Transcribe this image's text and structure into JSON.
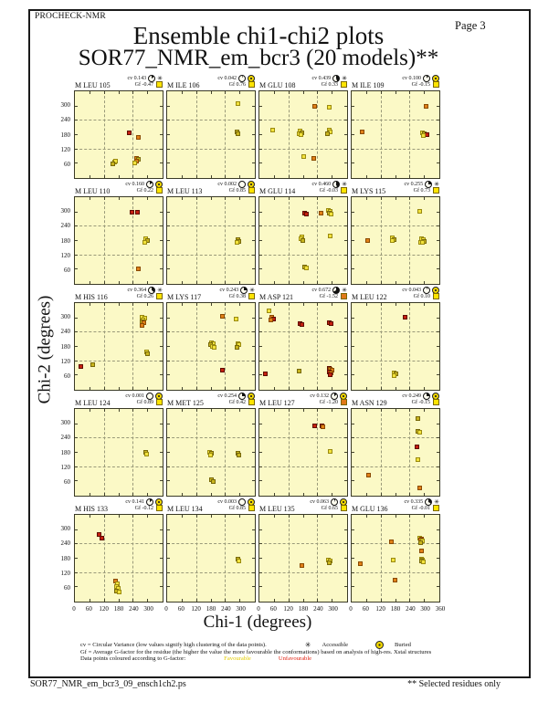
{
  "page": {
    "app_name": "PROCHECK-NMR",
    "page_label": "Page  3",
    "title": "Ensemble chi1-chi2 plots",
    "subtitle": "SOR77_NMR_em_bcr3 (20 models)**",
    "footer_left": "SOR77_NMR_em_bcr3_09_ensch1ch2.ps",
    "footer_right": "** Selected residues only"
  },
  "axes": {
    "xlabel": "Chi-1 (degrees)",
    "ylabel": "Chi-2 (degrees)",
    "cv_prefix": "cv",
    "gf_prefix": "Gf"
  },
  "legend": {
    "cv_line": "cv = Circular Variance (low values signify high clustering of the data points).",
    "accessible_label": "Accessible",
    "buried_label": "Buried",
    "gf_line": "Gf = Average G-factor for the residue (the higher the value the more favourable the conformations)  based on analysis of high-res. Xstal structures",
    "colour_line": "Data points coloured according to G-factor:",
    "favourable_label": "Favourable",
    "unfavourable_label": "Unfavourable"
  },
  "colors": {
    "plot_bg": "#fbf9c6",
    "favourable": "#f2e23c",
    "favourable_border": "#9a8a10",
    "olive": "#c8b41e",
    "olive_border": "#77680a",
    "orange": "#e08018",
    "orange_border": "#8a4a00",
    "unfavourable": "#c62010",
    "unfavourable_border": "#5e0c00",
    "gf_fav_swatch": "#ffe400",
    "gf_unfav_swatch": "#e07818"
  },
  "chart_data": {
    "type": "scatter",
    "grid": {
      "rows": 5,
      "cols": 4
    },
    "xlim": [
      0,
      360
    ],
    "ylim": [
      0,
      360
    ],
    "x_ticks": [
      0,
      60,
      120,
      180,
      240,
      300
    ],
    "x_end_tick": 360,
    "y_ticks": [
      300,
      240,
      180,
      120,
      60
    ],
    "dashed_grid_at": [
      120,
      240
    ],
    "point_colour_codes": {
      "f": "favourable",
      "d": "olive",
      "o": "orange",
      "u": "unfavourable"
    },
    "plots": [
      {
        "residue": "M LEU 105",
        "cv": "0.143",
        "gf": "-0.47",
        "exposure": "accessible",
        "gf_flag": "favourable",
        "points": [
          [
            225,
            185,
            "u"
          ],
          [
            263,
            165,
            "o"
          ],
          [
            163,
            62,
            "f"
          ],
          [
            170,
            67,
            "f"
          ],
          [
            158,
            56,
            "d"
          ],
          [
            255,
            80,
            "o"
          ],
          [
            262,
            74,
            "d"
          ],
          [
            257,
            67,
            "o"
          ],
          [
            250,
            60,
            "f"
          ]
        ]
      },
      {
        "residue": "M ILE 106",
        "cv": "0.042",
        "gf": "0.76",
        "exposure": "buried",
        "gf_flag": "favourable",
        "points": [
          [
            295,
            310,
            "f"
          ],
          [
            288,
            188,
            "d"
          ],
          [
            294,
            181,
            "d"
          ]
        ]
      },
      {
        "residue": "M GLU 108",
        "cv": "0.439",
        "gf": "0.33",
        "exposure": "accessible",
        "gf_flag": "favourable",
        "points": [
          [
            228,
            297,
            "o"
          ],
          [
            288,
            294,
            "f"
          ],
          [
            55,
            197,
            "f"
          ],
          [
            170,
            192,
            "f"
          ],
          [
            177,
            185,
            "d"
          ],
          [
            166,
            183,
            "f"
          ],
          [
            173,
            178,
            "f"
          ],
          [
            288,
            197,
            "f"
          ],
          [
            294,
            189,
            "f"
          ],
          [
            284,
            181,
            "d"
          ],
          [
            183,
            85,
            "f"
          ],
          [
            226,
            77,
            "o"
          ]
        ]
      },
      {
        "residue": "M ILE 109",
        "cv": "0.100",
        "gf": "-0.15",
        "exposure": "buried",
        "gf_flag": "favourable",
        "points": [
          [
            307,
            297,
            "o"
          ],
          [
            45,
            191,
            "o"
          ],
          [
            295,
            184,
            "f"
          ],
          [
            303,
            181,
            "d"
          ],
          [
            311,
            178,
            "u"
          ],
          [
            299,
            174,
            "f"
          ]
        ]
      },
      {
        "residue": "M LEU 110",
        "cv": "0.160",
        "gf": "0.22",
        "exposure": "buried",
        "gf_flag": "favourable",
        "points": [
          [
            238,
            296,
            "u"
          ],
          [
            261,
            295,
            "u"
          ],
          [
            294,
            184,
            "f"
          ],
          [
            300,
            178,
            "d"
          ],
          [
            289,
            172,
            "f"
          ],
          [
            262,
            60,
            "o"
          ]
        ]
      },
      {
        "residue": "M LEU 113",
        "cv": "0.002",
        "gf": "0.85",
        "exposure": "buried",
        "gf_flag": "favourable",
        "points": [
          [
            292,
            181,
            "d"
          ],
          [
            297,
            176,
            "d"
          ],
          [
            290,
            171,
            "f"
          ]
        ]
      },
      {
        "residue": "M GLU 114",
        "cv": "0.460",
        "gf": "-0.03",
        "exposure": "accessible",
        "gf_flag": "favourable",
        "points": [
          [
            188,
            293,
            "u"
          ],
          [
            196,
            289,
            "u"
          ],
          [
            255,
            292,
            "o"
          ],
          [
            285,
            306,
            "f"
          ],
          [
            293,
            301,
            "f"
          ],
          [
            288,
            294,
            "d"
          ],
          [
            296,
            290,
            "f"
          ],
          [
            178,
            195,
            "f"
          ],
          [
            173,
            187,
            "f"
          ],
          [
            180,
            179,
            "d"
          ],
          [
            294,
            199,
            "f"
          ],
          [
            186,
            68,
            "d"
          ],
          [
            194,
            63,
            "f"
          ]
        ]
      },
      {
        "residue": "M LYS 115",
        "cv": "0.255",
        "gf": "0.73",
        "exposure": "accessible",
        "gf_flag": "favourable",
        "points": [
          [
            284,
            301,
            "f"
          ],
          [
            68,
            179,
            "o"
          ],
          [
            170,
            189,
            "f"
          ],
          [
            177,
            183,
            "d"
          ],
          [
            167,
            177,
            "f"
          ],
          [
            288,
            186,
            "f"
          ],
          [
            296,
            181,
            "f"
          ],
          [
            301,
            176,
            "d"
          ],
          [
            285,
            171,
            "f"
          ],
          [
            292,
            169,
            "f"
          ]
        ]
      },
      {
        "residue": "M HIS 116",
        "cv": "0.364",
        "gf": "0.26",
        "exposure": "accessible",
        "gf_flag": "favourable",
        "points": [
          [
            280,
            301,
            "f"
          ],
          [
            288,
            297,
            "f"
          ],
          [
            284,
            289,
            "f"
          ],
          [
            277,
            282,
            "d"
          ],
          [
            286,
            276,
            "o"
          ],
          [
            280,
            268,
            "o"
          ],
          [
            297,
            156,
            "f"
          ],
          [
            303,
            148,
            "d"
          ],
          [
            25,
            95,
            "u"
          ],
          [
            75,
            101,
            "d"
          ]
        ]
      },
      {
        "residue": "M LYS 117",
        "cv": "0.243",
        "gf": "0.38",
        "exposure": "accessible",
        "gf_flag": "favourable",
        "points": [
          [
            228,
            306,
            "o"
          ],
          [
            286,
            292,
            "f"
          ],
          [
            185,
            193,
            "f"
          ],
          [
            192,
            188,
            "f"
          ],
          [
            180,
            184,
            "d"
          ],
          [
            188,
            178,
            "f"
          ],
          [
            196,
            174,
            "f"
          ],
          [
            293,
            191,
            "f"
          ],
          [
            299,
            184,
            "f"
          ],
          [
            290,
            176,
            "d"
          ],
          [
            228,
            78,
            "u"
          ]
        ]
      },
      {
        "residue": "M ASP 121",
        "cv": "0.672",
        "gf": "-1.52",
        "exposure": "accessible",
        "gf_flag": "unfavourable",
        "points": [
          [
            40,
            326,
            "f"
          ],
          [
            52,
            301,
            "o"
          ],
          [
            58,
            293,
            "u"
          ],
          [
            48,
            288,
            "o"
          ],
          [
            168,
            275,
            "u"
          ],
          [
            175,
            270,
            "u"
          ],
          [
            290,
            278,
            "u"
          ],
          [
            297,
            274,
            "u"
          ],
          [
            25,
            65,
            "u"
          ],
          [
            165,
            75,
            "d"
          ],
          [
            288,
            86,
            "u"
          ],
          [
            295,
            82,
            "o"
          ],
          [
            301,
            78,
            "o"
          ],
          [
            290,
            72,
            "u"
          ],
          [
            297,
            67,
            "o"
          ],
          [
            292,
            61,
            "u"
          ]
        ]
      },
      {
        "residue": "M LEU 122",
        "cv": "0.043",
        "gf": "0.10",
        "exposure": "buried",
        "gf_flag": "favourable",
        "points": [
          [
            220,
            301,
            "u"
          ],
          [
            176,
            68,
            "f"
          ],
          [
            183,
            63,
            "d"
          ],
          [
            178,
            57,
            "f"
          ]
        ]
      },
      {
        "residue": "M LEU 124",
        "cv": "0.001",
        "gf": "0.89",
        "exposure": "buried",
        "gf_flag": "favourable",
        "points": [
          [
            293,
            177,
            "d"
          ],
          [
            298,
            172,
            "f"
          ]
        ]
      },
      {
        "residue": "M MET 125",
        "cv": "0.254",
        "gf": "0.42",
        "exposure": "buried",
        "gf_flag": "favourable",
        "points": [
          [
            176,
            179,
            "f"
          ],
          [
            183,
            174,
            "d"
          ],
          [
            179,
            168,
            "f"
          ],
          [
            293,
            173,
            "d"
          ],
          [
            298,
            167,
            "d"
          ],
          [
            183,
            62,
            "d"
          ],
          [
            190,
            57,
            "d"
          ]
        ]
      },
      {
        "residue": "M LEU 127",
        "cv": "0.132",
        "gf": "-1.20",
        "exposure": "buried",
        "gf_flag": "unfavourable",
        "points": [
          [
            230,
            291,
            "u"
          ],
          [
            258,
            289,
            "u"
          ],
          [
            265,
            287,
            "o"
          ],
          [
            295,
            181,
            "f"
          ]
        ]
      },
      {
        "residue": "M ASN 129",
        "cv": "0.249",
        "gf": "-0.15",
        "exposure": "buried",
        "gf_flag": "favourable",
        "points": [
          [
            276,
            321,
            "d"
          ],
          [
            276,
            266,
            "d"
          ],
          [
            281,
            262,
            "f"
          ],
          [
            272,
            201,
            "u"
          ],
          [
            276,
            146,
            "f"
          ],
          [
            70,
            81,
            "o"
          ],
          [
            281,
            29,
            "o"
          ]
        ]
      },
      {
        "residue": "M HIS 133",
        "cv": "0.141",
        "gf": "-0.12",
        "exposure": "buried",
        "gf_flag": "favourable",
        "points": [
          [
            100,
            276,
            "u"
          ],
          [
            112,
            263,
            "u"
          ],
          [
            170,
            83,
            "o"
          ],
          [
            178,
            72,
            "f"
          ],
          [
            172,
            58,
            "f"
          ],
          [
            180,
            50,
            "f"
          ],
          [
            174,
            42,
            "d"
          ],
          [
            182,
            38,
            "f"
          ]
        ]
      },
      {
        "residue": "M LEU 134",
        "cv": "0.003",
        "gf": "0.85",
        "exposure": "buried",
        "gf_flag": "favourable",
        "points": [
          [
            292,
            173,
            "d"
          ],
          [
            297,
            168,
            "f"
          ]
        ]
      },
      {
        "residue": "M LEU 135",
        "cv": "0.063",
        "gf": "0.65",
        "exposure": "buried",
        "gf_flag": "favourable",
        "points": [
          [
            175,
            146,
            "o"
          ],
          [
            287,
            169,
            "f"
          ],
          [
            293,
            165,
            "f"
          ],
          [
            290,
            158,
            "d"
          ]
        ]
      },
      {
        "residue": "M GLU 136",
        "cv": "0.335",
        "gf": "-0.01",
        "exposure": "accessible",
        "gf_flag": "favourable",
        "points": [
          [
            35,
            156,
            "o"
          ],
          [
            165,
            246,
            "o"
          ],
          [
            172,
            171,
            "f"
          ],
          [
            180,
            85,
            "o"
          ],
          [
            283,
            263,
            "f"
          ],
          [
            290,
            259,
            "o"
          ],
          [
            287,
            253,
            "o"
          ],
          [
            294,
            250,
            "f"
          ],
          [
            285,
            245,
            "d"
          ],
          [
            290,
            208,
            "o"
          ],
          [
            288,
            176,
            "f"
          ],
          [
            295,
            172,
            "f"
          ],
          [
            290,
            166,
            "d"
          ],
          [
            296,
            161,
            "f"
          ]
        ]
      }
    ]
  }
}
